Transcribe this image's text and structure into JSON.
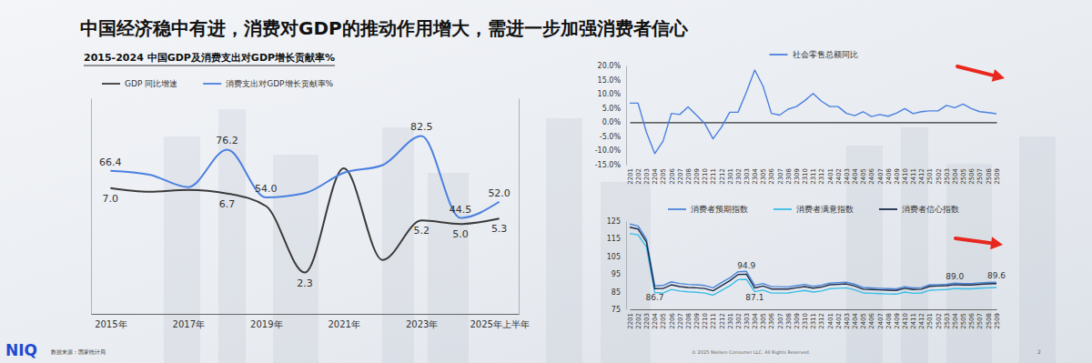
{
  "title": "中国经济稳中有进，消费对GDP的推动作用增大，需进一步加强消费者信心",
  "source": "数据来源：国家统计局",
  "logo": "NIQ",
  "copyright": "© 2025 Nielsen Consumer LLC. All Rights Reserved.",
  "page_number": "2",
  "chart_data": [
    {
      "type": "line",
      "title": "2015-2024 中国GDP及消费支出对GDP增长贡献率%",
      "categories": [
        "2015年",
        null,
        "2017年",
        null,
        "2019年",
        null,
        "2021年",
        null,
        "2023年",
        null,
        "2025年上半年"
      ],
      "series": [
        {
          "name": "GDP 同比增速",
          "color": "#3a3a3a",
          "axis": "y2",
          "line_style": "smooth",
          "values": [
            7.0,
            6.8,
            6.9,
            6.7,
            6.0,
            2.3,
            8.1,
            3.0,
            5.2,
            5.0,
            5.3
          ],
          "value_labels": [
            "7.0",
            null,
            null,
            "6.7",
            null,
            "2.3",
            null,
            null,
            "5.2",
            "5.0",
            "5.3"
          ]
        },
        {
          "name": "消费支出对GDP增长贡献率%",
          "color": "#4a80e0",
          "line_style": "smooth",
          "values": [
            66.4,
            64.6,
            58.8,
            76.2,
            54.0,
            56.0,
            65.4,
            69.0,
            82.5,
            44.5,
            52.0
          ],
          "value_labels": [
            "66.4",
            null,
            null,
            "76.2",
            "54.0",
            null,
            null,
            null,
            "82.5",
            "44.5",
            "52.0"
          ]
        }
      ],
      "ylim": [
        0,
        100
      ],
      "y2lim": [
        0,
        12
      ],
      "tick_labels": "x",
      "data_labels": true,
      "legend": "top-left"
    },
    {
      "type": "line",
      "categories": [
        "2201",
        "2202",
        "2203",
        "2204",
        "2205",
        "2206",
        "2207",
        "2208",
        "2209",
        "2210",
        "2211",
        "2212",
        "2301",
        "2302",
        "2303",
        "2304",
        "2305",
        "2306",
        "2307",
        "2308",
        "2309",
        "2310",
        "2311",
        "2312",
        "2401",
        "2402",
        "2403",
        "2404",
        "2405",
        "2406",
        "2407",
        "2408",
        "2409",
        "2410",
        "2411",
        "2412",
        "2501",
        "2502",
        "2503",
        "2504",
        "2505",
        "2506",
        "2507",
        "2508",
        "2509"
      ],
      "series": [
        {
          "name": "社会零售总额同比",
          "color": "#4a80e0",
          "values": [
            6.7,
            6.7,
            -3.5,
            -11.1,
            -6.7,
            3.1,
            2.7,
            5.4,
            2.5,
            -0.5,
            -5.9,
            -1.8,
            3.5,
            3.5,
            10.6,
            18.4,
            12.7,
            3.1,
            2.5,
            4.6,
            5.5,
            7.6,
            10.1,
            7.4,
            5.5,
            5.5,
            3.1,
            2.3,
            3.7,
            2.0,
            2.7,
            2.1,
            3.2,
            4.8,
            3.0,
            3.7,
            4.0,
            4.0,
            5.9,
            5.1,
            6.4,
            4.8,
            3.7,
            3.4,
            3.0
          ]
        }
      ],
      "ylim": [
        -15,
        20
      ],
      "yticks": [
        {
          "value": -15,
          "label": "-15.0%"
        },
        {
          "value": -10,
          "label": "-10.0%"
        },
        {
          "value": -5,
          "label": "-5.0%"
        },
        {
          "value": 0,
          "label": "0.0%"
        },
        {
          "value": 5,
          "label": "5.0%"
        },
        {
          "value": 10,
          "label": "10.0%"
        },
        {
          "value": 15,
          "label": "15.0%"
        },
        {
          "value": 20,
          "label": "20.0%"
        }
      ],
      "legend": "top"
    },
    {
      "type": "line",
      "categories": [
        "2201",
        "2202",
        "2203",
        "2204",
        "2205",
        "2206",
        "2207",
        "2208",
        "2209",
        "2210",
        "2211",
        "2212",
        "2301",
        "2302",
        "2303",
        "2304",
        "2305",
        "2306",
        "2307",
        "2308",
        "2309",
        "2310",
        "2311",
        "2312",
        "2401",
        "2402",
        "2403",
        "2404",
        "2405",
        "2406",
        "2407",
        "2408",
        "2409",
        "2410",
        "2411",
        "2412",
        "2501",
        "2502",
        "2503",
        "2504",
        "2505",
        "2506",
        "2507",
        "2508",
        "2509"
      ],
      "series": [
        {
          "name": "消费者预期指数",
          "color": "#4a86d8",
          "values": [
            123.3,
            122.2,
            114.8,
            88.3,
            88.5,
            90.6,
            89.6,
            89.1,
            88.9,
            88.5,
            87.2,
            90.1,
            92.8,
            96.3,
            96.5,
            88.6,
            89.6,
            87.8,
            87.8,
            87.7,
            88.4,
            89.1,
            88.1,
            88.7,
            89.9,
            90.1,
            90.4,
            89.2,
            87.4,
            87.1,
            86.9,
            86.7,
            86.6,
            87.8,
            87.1,
            87.3,
            88.9,
            89.0,
            89.2,
            89.8,
            89.6,
            89.6,
            90.0,
            90.2,
            90.4
          ]
        },
        {
          "name": "消费者满意指数",
          "color": "#38bde6",
          "values": [
            118.0,
            117.2,
            110.4,
            84.5,
            84.2,
            86.3,
            85.4,
            84.9,
            84.7,
            84.2,
            83.0,
            85.6,
            88.3,
            91.8,
            92.0,
            85.0,
            85.9,
            84.2,
            84.2,
            84.3,
            85.0,
            85.7,
            84.8,
            85.4,
            86.7,
            86.9,
            87.2,
            86.0,
            84.3,
            84.1,
            83.9,
            83.7,
            83.6,
            84.8,
            84.1,
            84.3,
            85.8,
            86.0,
            86.2,
            86.8,
            86.6,
            86.6,
            87.0,
            87.2,
            87.4
          ]
        },
        {
          "name": "消费者信心指数",
          "color": "#1b2a4a",
          "values": [
            121.5,
            120.5,
            113.2,
            86.7,
            86.8,
            88.9,
            87.9,
            87.4,
            87.2,
            86.8,
            85.5,
            88.3,
            91.2,
            94.7,
            94.9,
            87.1,
            88.2,
            86.5,
            86.5,
            86.5,
            87.2,
            87.9,
            87.0,
            87.6,
            88.9,
            89.1,
            89.4,
            88.2,
            86.4,
            86.2,
            86.0,
            85.8,
            85.7,
            86.9,
            86.2,
            86.4,
            88.0,
            88.2,
            88.4,
            89.0,
            88.8,
            88.8,
            89.2,
            89.4,
            89.6
          ],
          "value_labels": [
            null,
            null,
            null,
            "86.7",
            null,
            null,
            null,
            null,
            null,
            null,
            null,
            null,
            null,
            null,
            "94.9",
            "87.1",
            null,
            null,
            null,
            null,
            null,
            null,
            null,
            null,
            null,
            null,
            null,
            null,
            null,
            null,
            null,
            null,
            null,
            null,
            null,
            null,
            null,
            null,
            null,
            "89.0",
            null,
            null,
            null,
            null,
            "89.6"
          ]
        }
      ],
      "ylim": [
        75,
        125
      ],
      "yticks": [
        75,
        85,
        95,
        105,
        115,
        125
      ],
      "data_labels": true,
      "legend": "top"
    }
  ]
}
